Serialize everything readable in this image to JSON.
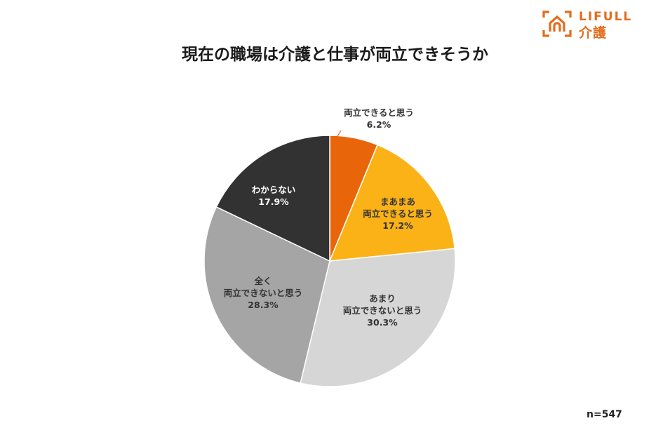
{
  "logo": {
    "brand": "LIFULL",
    "service": "介護",
    "color": "#e46c1d"
  },
  "title": "現在の職場は介護と仕事が両立できそうか",
  "sample_size": "n=547",
  "chart_data": {
    "type": "pie",
    "title": "現在の職場は介護と仕事が両立できそうか",
    "start_angle_deg": 0,
    "direction": "clockwise",
    "categories": [
      "両立できると思う",
      "まあまあ両立できると思う",
      "あまり両立できないと思う",
      "全く両立できないと思う",
      "わからない"
    ],
    "values": [
      6.2,
      17.2,
      30.3,
      28.3,
      17.9
    ],
    "unit": "%",
    "colors": [
      "#e8650a",
      "#fbb217",
      "#d6d6d6",
      "#a5a5a5",
      "#323232"
    ],
    "n": 547,
    "legend": "none (direct labels)"
  },
  "labels": [
    {
      "line1": "両立できると思う",
      "line2": "",
      "value": "6.2%"
    },
    {
      "line1": "まあまあ",
      "line2": "両立できると思う",
      "value": "17.2%"
    },
    {
      "line1": "あまり",
      "line2": "両立できないと思う",
      "value": "30.3%"
    },
    {
      "line1": "全く",
      "line2": "両立できないと思う",
      "value": "28.3%"
    },
    {
      "line1": "わからない",
      "line2": "",
      "value": "17.9%"
    }
  ]
}
